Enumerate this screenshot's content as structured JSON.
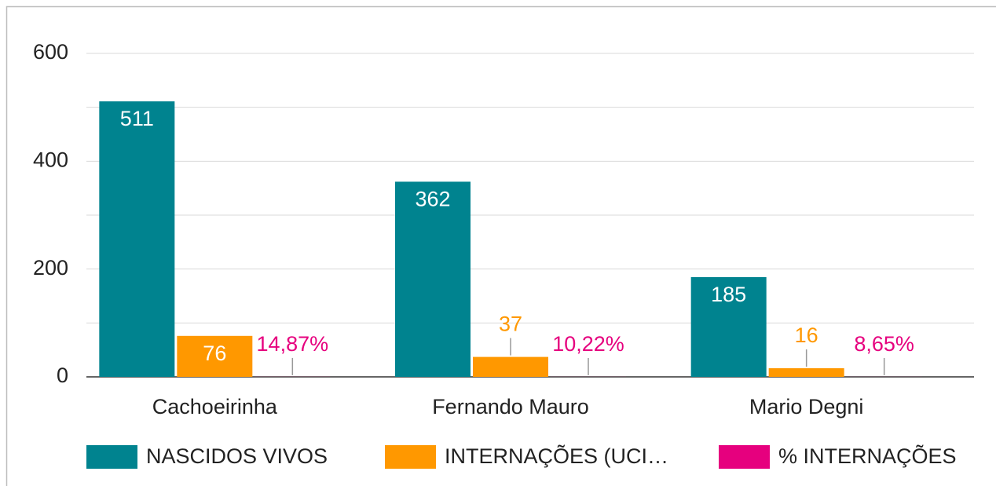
{
  "chart_data": {
    "type": "bar",
    "categories": [
      "Cachoeirinha",
      "Fernando Mauro",
      "Mario Degni"
    ],
    "series": [
      {
        "name": "NASCIDOS VIVOS",
        "color": "#00838f",
        "values": [
          511,
          362,
          185
        ]
      },
      {
        "name": "INTERNAÇÕES (UCI…",
        "color": "#ff9800",
        "values": [
          76,
          37,
          16
        ]
      },
      {
        "name": "% INTERNAÇÕES",
        "color": "#e6007e",
        "values": [
          0.1487,
          0.1022,
          0.0865
        ],
        "value_labels": [
          "14,87%",
          "10,22%",
          "8,65%"
        ]
      }
    ],
    "ylim": [
      0,
      600
    ],
    "yticks": [
      0,
      200,
      400,
      600
    ],
    "minor_gridlines": [
      100,
      300,
      500
    ],
    "grid": true,
    "legend": "bottom"
  }
}
